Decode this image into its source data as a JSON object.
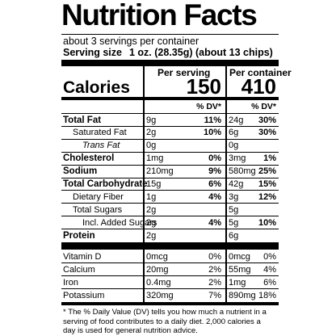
{
  "header": {
    "title": "Nutrition Facts",
    "servings": "about 3 servings per container",
    "serving_size_label": "Serving size",
    "serving_size": "1 oz. (28.35g) (about 13 chips)"
  },
  "columns": {
    "per_serving": "Per serving",
    "per_container": "Per container",
    "dv": "% DV*"
  },
  "calories": {
    "label": "Calories",
    "per_serving": "150",
    "per_container": "410"
  },
  "nutrients": [
    {
      "name": "Total Fat",
      "serving_amount": "9g",
      "serving_dv": "11%",
      "container_amount": "24g",
      "container_dv": "30%"
    },
    {
      "name": "Saturated Fat",
      "serving_amount": "2g",
      "serving_dv": "10%",
      "container_amount": "6g",
      "container_dv": "30%"
    },
    {
      "name": "Trans Fat",
      "serving_amount": "0g",
      "container_amount": "0g"
    },
    {
      "name": "Cholesterol",
      "serving_amount": "1mg",
      "serving_dv": "0%",
      "container_amount": "3mg",
      "container_dv": "1%"
    },
    {
      "name": "Sodium",
      "serving_amount": "210mg",
      "serving_dv": "9%",
      "container_amount": "580mg",
      "container_dv": "25%"
    },
    {
      "name": "Total Carbohydrate",
      "serving_amount": "15g",
      "serving_dv": "6%",
      "container_amount": "42g",
      "container_dv": "15%"
    },
    {
      "name": "Dietary Fiber",
      "serving_amount": "1g",
      "serving_dv": "4%",
      "container_amount": "3g",
      "container_dv": "12%"
    },
    {
      "name": "Total Sugars",
      "serving_amount": "2g",
      "container_amount": "5g"
    },
    {
      "name": "Incl. Added Sugars",
      "serving_amount": "2g",
      "serving_dv": "4%",
      "container_amount": "5g",
      "container_dv": "10%"
    },
    {
      "name": "Protein",
      "serving_amount": "2g",
      "container_amount": "6g"
    },
    {
      "name": "Vitamin D",
      "serving_amount": "0mcg",
      "serving_dv": "0%",
      "container_amount": "0mcg",
      "container_dv": "0%"
    },
    {
      "name": "Calcium",
      "serving_amount": "20mg",
      "serving_dv": "2%",
      "container_amount": "55mg",
      "container_dv": "4%"
    },
    {
      "name": "Iron",
      "serving_amount": "0.4mg",
      "serving_dv": "2%",
      "container_amount": "1mg",
      "container_dv": "6%"
    },
    {
      "name": "Potassium",
      "serving_amount": "320mg",
      "serving_dv": "7%",
      "container_amount": "890mg",
      "container_dv": "18%"
    }
  ],
  "footnote": "* The % Daily Value (DV) tells you how much a nutrient in a serving of food contributes to a daily diet. 2,000 calories a day is used for general nutrition advice."
}
